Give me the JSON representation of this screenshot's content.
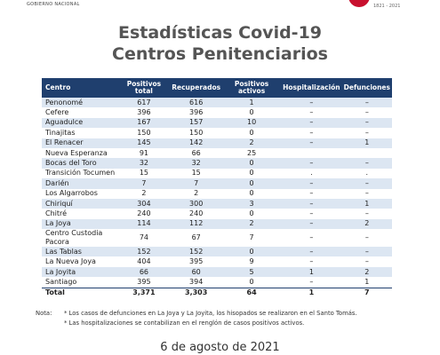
{
  "header": {
    "left": "GOBIERNO NACIONAL",
    "right": "1821 - 2021"
  },
  "title": "Estadísticas Covid-19",
  "subtitle": "Centros Penitenciarios",
  "table": {
    "columns": [
      "Centro",
      "Positivos total",
      "Recuperados",
      "Positivos activos",
      "Hospitalización",
      "Defunciones"
    ],
    "rows": [
      [
        "Penonomé",
        "617",
        "616",
        "1",
        "–",
        "–"
      ],
      [
        "Cefere",
        "396",
        "396",
        "0",
        "–",
        "–"
      ],
      [
        "Aguadulce",
        "167",
        "157",
        "10",
        "–",
        "–"
      ],
      [
        "Tinajitas",
        "150",
        "150",
        "0",
        "–",
        "–"
      ],
      [
        "El Renacer",
        "145",
        "142",
        "2",
        "–",
        "1"
      ],
      [
        "Nueva Esperanza",
        "91",
        "66",
        "25",
        "",
        ""
      ],
      [
        "Bocas del Toro",
        "32",
        "32",
        "0",
        "–",
        "–"
      ],
      [
        "Transición Tocumen",
        "15",
        "15",
        "0",
        ".",
        "."
      ],
      [
        "Darién",
        "7",
        "7",
        "0",
        "–",
        "–"
      ],
      [
        "Los Algarrobos",
        "2",
        "2",
        "0",
        "–",
        "–"
      ],
      [
        "Chiriquí",
        "304",
        "300",
        "3",
        "–",
        "1"
      ],
      [
        "Chitré",
        "240",
        "240",
        "0",
        "–",
        "–"
      ],
      [
        "La Joya",
        "114",
        "112",
        "2",
        "–",
        "2"
      ],
      [
        "Centro Custodia Pacora",
        "74",
        "67",
        "7",
        "–",
        "–"
      ],
      [
        "Las Tablas",
        "152",
        "152",
        "0",
        "–",
        "–"
      ],
      [
        "La Nueva Joya",
        "404",
        "395",
        "9",
        "–",
        "–"
      ],
      [
        "La Joyita",
        "66",
        "60",
        "5",
        "1",
        "2"
      ],
      [
        "Santiago",
        "395",
        "394",
        "0",
        "–",
        "1"
      ]
    ],
    "total": [
      "Total",
      "3,371",
      "3,303",
      "64",
      "1",
      "7"
    ]
  },
  "notes": {
    "label": "Nota:",
    "lines": [
      "* Los casos de defunciones en La Joya y La Joyita, los hisopados se realizaron en el Santo Tomás.",
      "* Las hospitalizaciones se contabilizan en el renglón de casos positivos activos."
    ]
  },
  "date": "6 de agosto de 2021"
}
